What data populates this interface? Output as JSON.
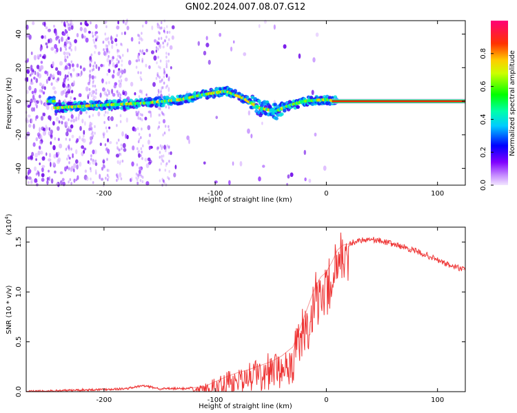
{
  "title": "GN02.2024.007.08.07.G12",
  "chart_data": [
    {
      "type": "heatmap",
      "xlabel": "Height of straight line (km)",
      "ylabel": "Frequency (Hz)",
      "xlim": [
        -270,
        125
      ],
      "ylim": [
        -50,
        48
      ],
      "xticks": [
        -200,
        -100,
        0,
        100
      ],
      "yticks": [
        -40,
        -20,
        0,
        20,
        40
      ],
      "colorbar": {
        "label": "Normalized spectral amplitude",
        "range": [
          0,
          1
        ],
        "ticks": [
          0.0,
          0.2,
          0.4,
          0.6,
          0.8
        ]
      },
      "ridge": [
        {
          "x": -245,
          "f": -4
        },
        {
          "x": -220,
          "f": -3
        },
        {
          "x": -190,
          "f": -2
        },
        {
          "x": -160,
          "f": -1
        },
        {
          "x": -130,
          "f": 1
        },
        {
          "x": -110,
          "f": 4
        },
        {
          "x": -90,
          "f": 6
        },
        {
          "x": -75,
          "f": 2
        },
        {
          "x": -60,
          "f": -4
        },
        {
          "x": -45,
          "f": -6
        },
        {
          "x": -35,
          "f": -3
        },
        {
          "x": -20,
          "f": 0
        },
        {
          "x": 0,
          "f": 1
        },
        {
          "x": 10,
          "f": 0
        },
        {
          "x": 125,
          "f": 0
        }
      ],
      "grid": false
    },
    {
      "type": "line",
      "xlabel": "Height of straight line (km)",
      "ylabel": "SNR (10 * v/v)",
      "yscale_label": "(x10",
      "yscale_exponent": "4",
      "yscale_suffix": ")",
      "xlim": [
        -270,
        125
      ],
      "ylim": [
        0,
        1.65
      ],
      "xticks": [
        -200,
        -100,
        0,
        100
      ],
      "yticks": [
        0.0,
        0.5,
        1.0,
        1.5
      ],
      "ytick_labels": [
        "0.0",
        "0.5",
        "1.0",
        "1.5"
      ],
      "series": [
        {
          "color": "#ee3333",
          "x": [
            -270,
            -240,
            -210,
            -180,
            -165,
            -150,
            -130,
            -110,
            -100,
            -90,
            -80,
            -70,
            -60,
            -50,
            -40,
            -30,
            -25,
            -20,
            -15,
            -10,
            -5,
            0,
            5,
            10,
            15,
            20,
            30,
            40,
            50,
            60,
            70,
            80,
            90,
            100,
            110,
            125
          ],
          "y": [
            0.0,
            0.01,
            0.02,
            0.03,
            0.06,
            0.03,
            0.03,
            0.05,
            0.1,
            0.15,
            0.19,
            0.22,
            0.26,
            0.3,
            0.36,
            0.45,
            0.6,
            0.75,
            0.9,
            1.05,
            1.15,
            1.2,
            1.3,
            1.42,
            1.47,
            1.48,
            1.52,
            1.53,
            1.51,
            1.48,
            1.45,
            1.41,
            1.37,
            1.32,
            1.27,
            1.22
          ]
        }
      ]
    }
  ]
}
